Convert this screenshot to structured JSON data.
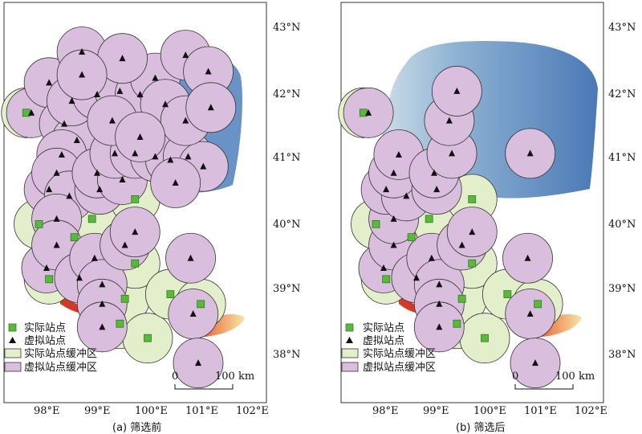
{
  "panels": [
    {
      "caption": "(a) 筛选前",
      "lat_labels": [
        "43°N",
        "42°N",
        "41°N",
        "40°N",
        "39°N",
        "38°N"
      ],
      "lon_labels": [
        "98°E",
        "99°E",
        "100°E",
        "101°E",
        "102°E"
      ],
      "scale_bar": {
        "start": "0",
        "end": "100 km"
      }
    },
    {
      "caption": "(b) 筛选后",
      "lat_labels": [
        "43°N",
        "42°N",
        "41°N",
        "40°N",
        "39°N",
        "38°N"
      ],
      "lon_labels": [
        "98°E",
        "99°E",
        "100°E",
        "101°E",
        "102°E"
      ],
      "scale_bar": {
        "start": "0",
        "end": "100 km"
      }
    }
  ],
  "legend": {
    "actual_station": "实际站点",
    "virtual_station": "虚拟站点",
    "actual_buffer": "实际站点缓冲区",
    "virtual_buffer": "虚拟站点缓冲区"
  },
  "colors": {
    "actual_station": "#5cb83a",
    "virtual_station": "#111111",
    "actual_buffer_fill": "#e3efcb",
    "virtual_buffer_fill": "#d9bedd",
    "lake_blue": "#5a86bf",
    "hot_red": "#d8432c",
    "warm_yellow": "#f1dc8a"
  },
  "stations": {
    "actual": [
      [
        97.6,
        41.72
      ],
      [
        97.85,
        40.02
      ],
      [
        98.05,
        39.18
      ],
      [
        98.55,
        39.82
      ],
      [
        98.9,
        40.1
      ],
      [
        99.45,
        38.5
      ],
      [
        99.55,
        38.88
      ],
      [
        99.75,
        39.42
      ],
      [
        99.75,
        40.4
      ],
      [
        100.0,
        38.28
      ],
      [
        100.45,
        38.95
      ],
      [
        101.05,
        38.8
      ]
    ],
    "virtual_a": [
      [
        97.7,
        41.72
      ],
      [
        98.05,
        42.18
      ],
      [
        98.35,
        41.55
      ],
      [
        98.6,
        41.3
      ],
      [
        98.3,
        41.08
      ],
      [
        98.05,
        40.55
      ],
      [
        98.2,
        40.8
      ],
      [
        98.45,
        40.45
      ],
      [
        98.2,
        40.1
      ],
      [
        98.0,
        39.35
      ],
      [
        98.2,
        39.7
      ],
      [
        98.65,
        39.2
      ],
      [
        98.95,
        39.5
      ],
      [
        99.1,
        39.1
      ],
      [
        99.1,
        38.8
      ],
      [
        99.1,
        38.45
      ],
      [
        99.55,
        39.7
      ],
      [
        99.75,
        39.9
      ],
      [
        99.05,
        40.55
      ],
      [
        99.0,
        40.8
      ],
      [
        99.5,
        40.7
      ],
      [
        99.35,
        41.1
      ],
      [
        99.75,
        41.1
      ],
      [
        100.15,
        41.05
      ],
      [
        100.45,
        41.0
      ],
      [
        100.8,
        41.05
      ],
      [
        101.1,
        40.9
      ],
      [
        98.5,
        41.9
      ],
      [
        99.0,
        42.0
      ],
      [
        99.45,
        42.05
      ],
      [
        99.85,
        42.0
      ],
      [
        100.15,
        42.25
      ],
      [
        100.75,
        42.6
      ],
      [
        101.2,
        42.35
      ],
      [
        98.7,
        42.65
      ],
      [
        99.5,
        42.55
      ],
      [
        100.35,
        41.85
      ],
      [
        100.75,
        41.6
      ],
      [
        101.25,
        41.8
      ],
      [
        98.7,
        42.3
      ],
      [
        99.3,
        41.6
      ],
      [
        99.85,
        41.35
      ],
      [
        100.55,
        40.65
      ],
      [
        100.85,
        39.5
      ],
      [
        100.9,
        38.65
      ],
      [
        101.0,
        37.9
      ]
    ],
    "virtual_b": [
      [
        97.7,
        41.72
      ],
      [
        98.0,
        39.35
      ],
      [
        98.2,
        39.7
      ],
      [
        98.2,
        40.1
      ],
      [
        98.05,
        40.55
      ],
      [
        98.45,
        40.45
      ],
      [
        98.2,
        40.8
      ],
      [
        98.3,
        41.08
      ],
      [
        98.65,
        39.2
      ],
      [
        98.95,
        39.5
      ],
      [
        99.1,
        39.1
      ],
      [
        99.1,
        38.8
      ],
      [
        99.1,
        38.45
      ],
      [
        99.55,
        39.7
      ],
      [
        99.75,
        39.9
      ],
      [
        99.05,
        40.55
      ],
      [
        99.0,
        40.8
      ],
      [
        99.35,
        41.1
      ],
      [
        99.3,
        41.6
      ],
      [
        99.45,
        42.05
      ],
      [
        100.9,
        41.1
      ],
      [
        100.85,
        39.5
      ],
      [
        100.9,
        38.65
      ],
      [
        101.0,
        37.9
      ]
    ]
  },
  "buffer_radius_km": 50
}
